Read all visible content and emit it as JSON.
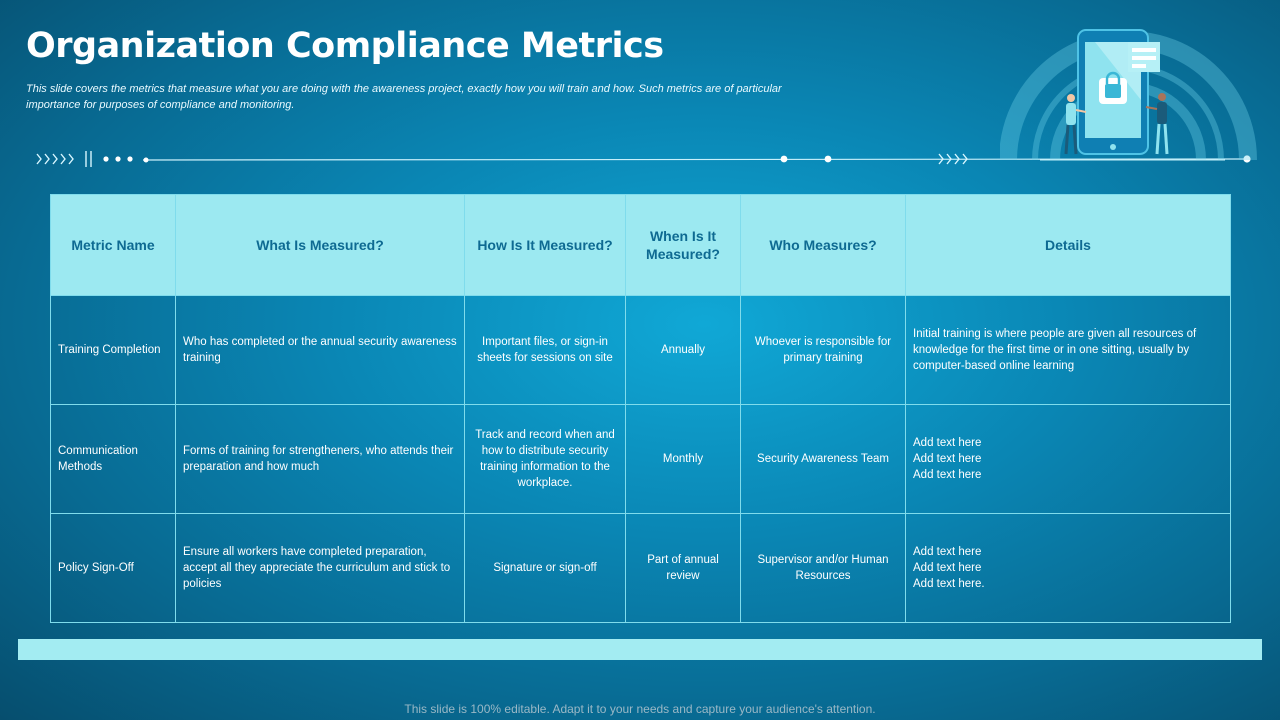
{
  "title": "Organization Compliance Metrics",
  "subtitle": "This slide covers the metrics that measure what you are doing with the awareness project, exactly how you will train and how. Such metrics are of particular importance for purposes of compliance and monitoring.",
  "table": {
    "headers": [
      "Metric Name",
      "What Is Measured?",
      "How Is It Measured?",
      "When Is It Measured?",
      "Who Measures?",
      "Details"
    ],
    "rows": [
      {
        "metric": "Training Completion",
        "what": "Who has completed or the annual security awareness training",
        "how": "Important files, or sign-in sheets for sessions on site",
        "when": "Annually",
        "who": "Whoever is responsible for primary training",
        "details": [
          "Initial training is where people are given all resources of knowledge for the first time or in one sitting, usually by computer-based online learning"
        ]
      },
      {
        "metric": "Communication Methods",
        "what": "Forms of training for strengtheners, who attends their preparation and how much",
        "how": "Track and record when and how to distribute security training information to the workplace.",
        "when": "Monthly",
        "who": "Security Awareness Team",
        "details": [
          "Add text here",
          "Add text here",
          "Add text here"
        ]
      },
      {
        "metric": "Policy Sign-Off",
        "what": "Ensure all workers have completed preparation, accept all they appreciate the curriculum and stick to policies",
        "how": "Signature or sign-off",
        "when": "Part of annual review",
        "who": "Supervisor and/or Human Resources",
        "details": [
          "Add text here",
          "Add text here",
          "Add text here."
        ]
      }
    ]
  },
  "footer": "This slide is 100% editable. Adapt it to your needs and capture your audience's attention.",
  "colors": {
    "header_bg": "#9ce9f1",
    "header_text": "#0e6a92",
    "grid_lines": "#7fdcec",
    "bottom_bar": "#a3ecf2"
  },
  "icons": [
    "chevrons-right-icon",
    "pause-bars-icon",
    "dots-icon",
    "smartphone-lock-icon",
    "person-icon"
  ]
}
